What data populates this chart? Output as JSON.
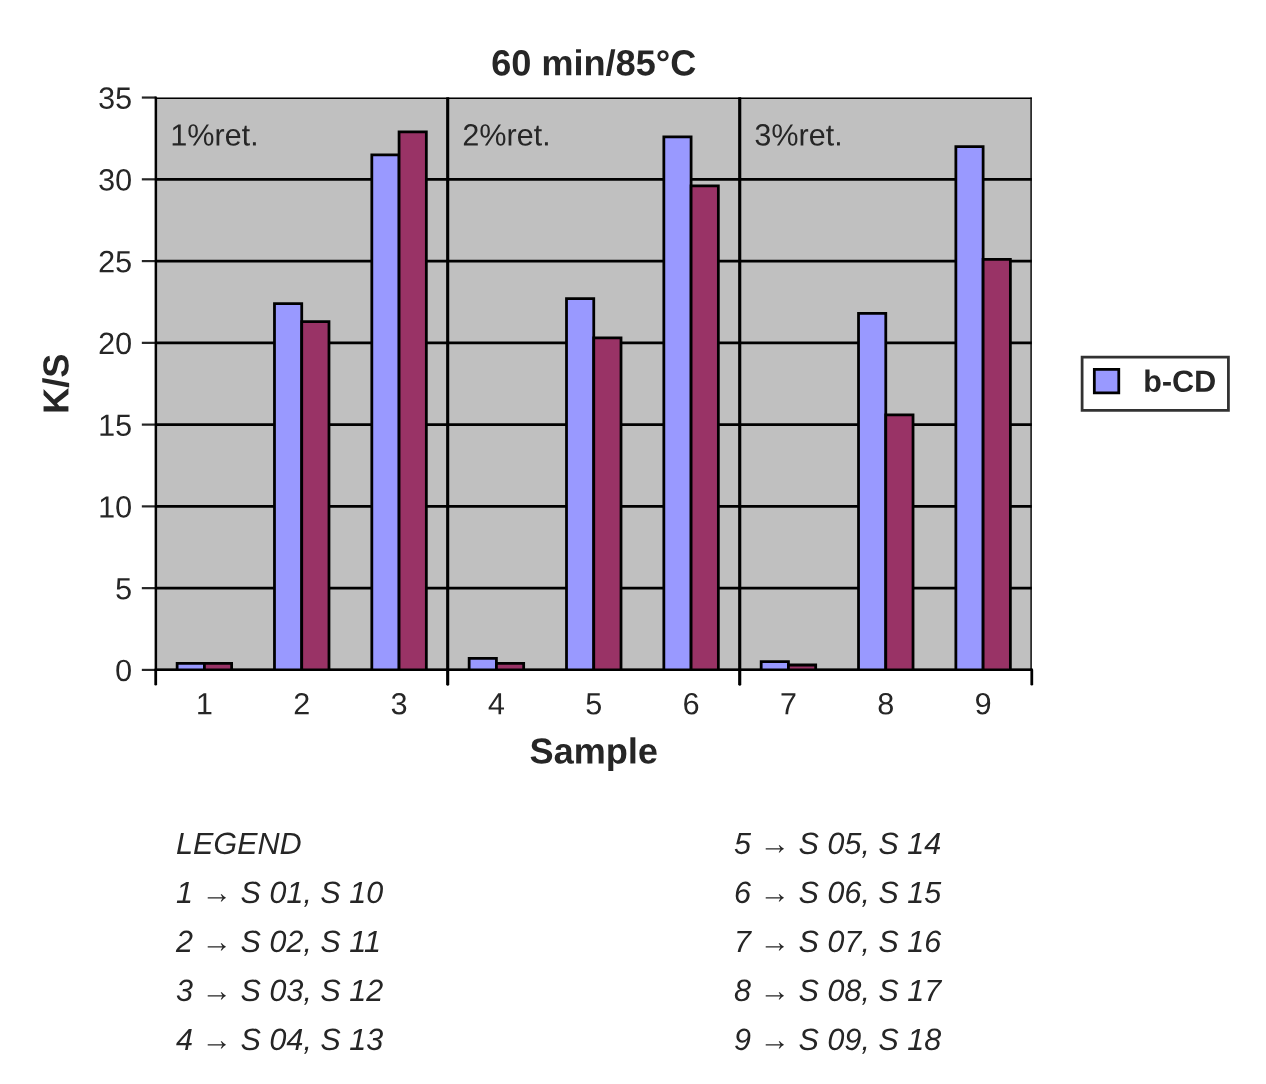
{
  "chart_data": {
    "type": "bar",
    "title": "60 min/85°C",
    "xlabel": "Sample",
    "ylabel": "K/S",
    "categories": [
      "1",
      "2",
      "3",
      "4",
      "5",
      "6",
      "7",
      "8",
      "9"
    ],
    "series": [
      {
        "name": "b-CD",
        "color": "#9999ff",
        "values": [
          0.4,
          22.4,
          31.5,
          0.7,
          22.7,
          32.6,
          0.5,
          21.8,
          32.0
        ]
      },
      {
        "color": "#993366",
        "values": [
          0.4,
          21.3,
          32.9,
          0.4,
          20.3,
          29.6,
          0.3,
          15.6,
          25.1
        ]
      }
    ],
    "ylim": [
      0,
      35
    ],
    "yticks": [
      0,
      5,
      10,
      15,
      20,
      25,
      30,
      35
    ],
    "grid": "y",
    "legend": "right",
    "bands": [
      {
        "axis": "x",
        "from": "1",
        "to": "3",
        "label": "1%ret.",
        "color": "#c0c0c0"
      },
      {
        "axis": "x",
        "from": "4",
        "to": "6",
        "label": "2%ret.",
        "color": "#c0c0c0"
      },
      {
        "axis": "x",
        "from": "7",
        "to": "9",
        "label": "3%ret.",
        "color": "#c0c0c0"
      }
    ],
    "annotations": [
      "LEGEND",
      "1 → S 01, S 10",
      "2 → S 02, S 11",
      "3 → S 03, S 12",
      "4 → S 04, S 13",
      "5 → S 05, S 14",
      "6 → S 06, S 15",
      "7 → S 07, S 16",
      "8 → S 08, S 17",
      "9 → S 09, S 18"
    ]
  }
}
